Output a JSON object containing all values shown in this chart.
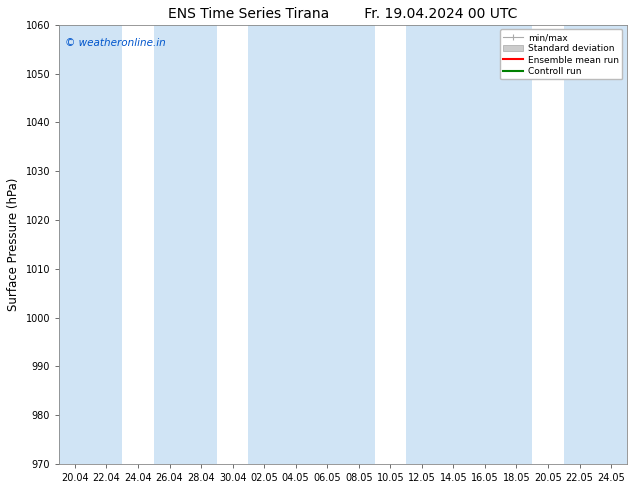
{
  "title_left": "ENS Time Series Tirana",
  "title_right": "Fr. 19.04.2024 00 UTC",
  "ylabel": "Surface Pressure (hPa)",
  "ylim": [
    970,
    1060
  ],
  "yticks": [
    970,
    980,
    990,
    1000,
    1010,
    1020,
    1030,
    1040,
    1050,
    1060
  ],
  "x_labels": [
    "20.04",
    "22.04",
    "24.04",
    "26.04",
    "28.04",
    "30.04",
    "02.05",
    "04.05",
    "06.05",
    "08.05",
    "10.05",
    "12.05",
    "14.05",
    "16.05",
    "18.05",
    "20.05",
    "22.05",
    "24.05"
  ],
  "watermark": "© weatheronline.in",
  "watermark_color": "#0055cc",
  "bg_color": "#ffffff",
  "plot_bg_color": "#ffffff",
  "band_color": "#d0e4f5",
  "legend_items": [
    {
      "label": "min/max",
      "color": "#aaaaaa",
      "lw": 1.0
    },
    {
      "label": "Standard deviation",
      "color": "#cccccc",
      "lw": 6
    },
    {
      "label": "Ensemble mean run",
      "color": "#ff0000",
      "lw": 1.5
    },
    {
      "label": "Controll run",
      "color": "#008000",
      "lw": 1.5
    }
  ],
  "title_fontsize": 10,
  "tick_fontsize": 7,
  "label_fontsize": 8.5,
  "watermark_fontsize": 7.5
}
